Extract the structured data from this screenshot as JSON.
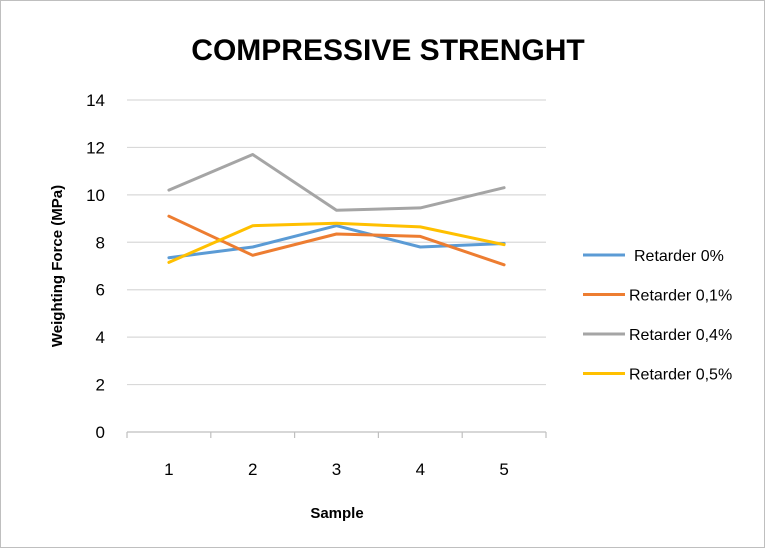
{
  "chart_data": {
    "type": "line",
    "title": "COMPRESSIVE STRENGHT",
    "xlabel": "Sample",
    "ylabel": "Weighting  Force (MPa)",
    "x": [
      1,
      2,
      3,
      4,
      5
    ],
    "x_tick_labels": [
      "1",
      "2",
      "3",
      "4",
      "5"
    ],
    "ylim": [
      0,
      14
    ],
    "y_ticks": [
      0,
      2,
      4,
      6,
      8,
      10,
      12,
      14
    ],
    "y_tick_labels": [
      "0",
      "2",
      "4",
      "6",
      "8",
      "10",
      "12",
      "14"
    ],
    "grid": "horizontal",
    "legend_position": "right",
    "series": [
      {
        "name": "Retarder 0%",
        "color": "#5b9bd5",
        "values": [
          7.35,
          7.8,
          8.7,
          7.8,
          7.95
        ]
      },
      {
        "name": "Retarder 0,1%",
        "color": "#ed7d31",
        "values": [
          9.1,
          7.45,
          8.35,
          8.25,
          7.05
        ]
      },
      {
        "name": "Retarder 0,4%",
        "color": "#a5a5a5",
        "values": [
          10.2,
          11.7,
          9.35,
          9.45,
          10.3
        ]
      },
      {
        "name": "Retarder 0,5%",
        "color": "#ffc000",
        "values": [
          7.15,
          8.7,
          8.8,
          8.65,
          7.9
        ]
      }
    ]
  }
}
